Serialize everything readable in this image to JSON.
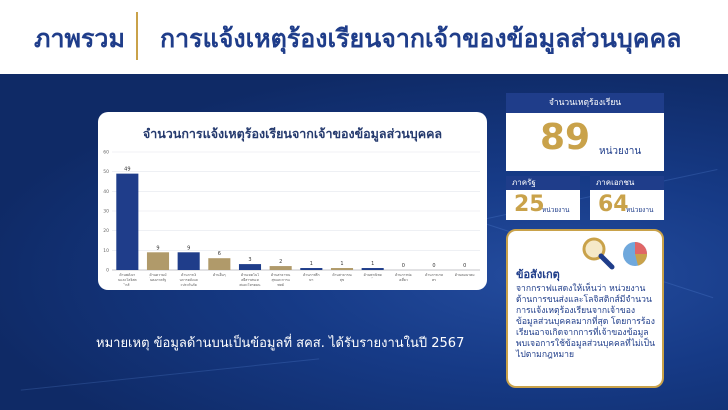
{
  "header": {
    "section": "ภาพรวม",
    "title": "การแจ้งเหตุร้องเรียนจากเจ้าของข้อมูลส่วนบุคคล"
  },
  "chart_data": {
    "type": "bar",
    "title": "จำนวนการแจ้งเหตุร้องเรียนจากเจ้าของข้อมูลส่วนบุคคล",
    "categories": [
      "ด้านพลังงานและโลจิสติกส์",
      "ด้านความมั่นคงภาครัฐ",
      "ด้านการเงินการคลังและประกันภัย",
      "ด้านอื่นๆ",
      "ด้านเทคโนโลยีสารสนเทศและโทรคมนาคม",
      "ด้านสาธารณสุขและการแพทย์",
      "ด้านการศึกษา",
      "ด้านสาธารณสุข",
      "ด้านพาณิชย์",
      "ด้านการท่องเที่ยว",
      "ด้านการเกษตร",
      "ด้านคมนาคม"
    ],
    "values": [
      49,
      9,
      9,
      6,
      3,
      2,
      1,
      1,
      1,
      0,
      0,
      0
    ],
    "colors": [
      "#1f3d8a",
      "#b09a6a",
      "#1f3d8a",
      "#b09a6a",
      "#1f3d8a",
      "#b09a6a",
      "#1f3d8a",
      "#b09a6a",
      "#1f3d8a",
      "#b09a6a",
      "#1f3d8a",
      "#b09a6a"
    ],
    "yticks": [
      0,
      10,
      20,
      30,
      40,
      50,
      60
    ],
    "ylim": [
      0,
      60
    ],
    "grid": true
  },
  "note": "หมายเหตุ ข้อมูลด้านบนเป็นข้อมูลที่ สคส. ได้รับรายงานในปี 2567",
  "stats": {
    "total_label": "จำนวนเหตุร้องเรียน",
    "total_value": "89",
    "total_unit": "หน่วยงาน",
    "gov_label": "ภาครัฐ",
    "gov_value": "25",
    "gov_unit": "หน่วยงาน",
    "private_label": "ภาคเอกชน",
    "private_value": "64",
    "private_unit": "หน่วยงาน"
  },
  "insight": {
    "title": "ข้อสังเกตุ",
    "body": "จากกราฟแสดงให้เห็นว่า หน่วยงานด้านการขนส่งและโลจิสติกส์มีจำนวนการแจ้งเหตุร้องเรียนจากเจ้าของข้อมูลส่วนบุคคลมากที่สุด โดยการร้องเรียนอาจเกิดจากการที่เจ้าของข้อมูลพบเจอการใช้ข้อมูลส่วนบุคคลที่ไม่เป็นไปตามกฎหมาย"
  }
}
